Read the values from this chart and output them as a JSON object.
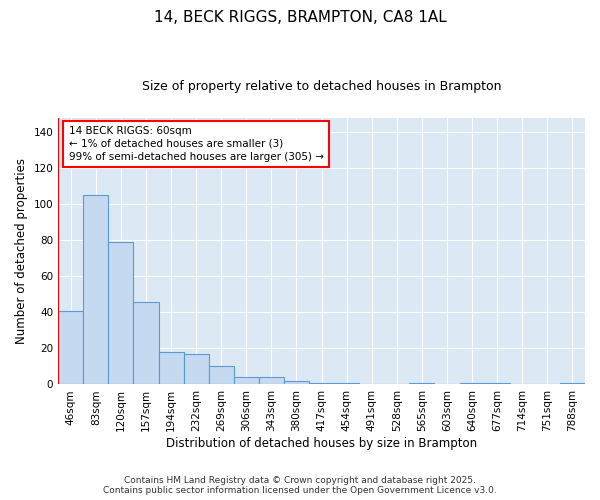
{
  "title": "14, BECK RIGGS, BRAMPTON, CA8 1AL",
  "subtitle": "Size of property relative to detached houses in Brampton",
  "xlabel": "Distribution of detached houses by size in Brampton",
  "ylabel": "Number of detached properties",
  "categories": [
    "46sqm",
    "83sqm",
    "120sqm",
    "157sqm",
    "194sqm",
    "232sqm",
    "269sqm",
    "306sqm",
    "343sqm",
    "380sqm",
    "417sqm",
    "454sqm",
    "491sqm",
    "528sqm",
    "565sqm",
    "603sqm",
    "640sqm",
    "677sqm",
    "714sqm",
    "751sqm",
    "788sqm"
  ],
  "values": [
    41,
    105,
    79,
    46,
    18,
    17,
    10,
    4,
    4,
    2,
    1,
    1,
    0,
    0,
    1,
    0,
    1,
    1,
    0,
    0,
    1
  ],
  "bar_color": "#c5d9f0",
  "bar_edge_color": "#5b9bd5",
  "annotation_text_line1": "14 BECK RIGGS: 60sqm",
  "annotation_text_line2": "← 1% of detached houses are smaller (3)",
  "annotation_text_line3": "99% of semi-detached houses are larger (305) →",
  "ylim": [
    0,
    148
  ],
  "yticks": [
    0,
    20,
    40,
    60,
    80,
    100,
    120,
    140
  ],
  "background_color": "#dce9f5",
  "plot_bg_color": "#dce9f5",
  "footer": "Contains HM Land Registry data © Crown copyright and database right 2025.\nContains public sector information licensed under the Open Government Licence v3.0.",
  "title_fontsize": 11,
  "subtitle_fontsize": 9,
  "axis_label_fontsize": 8.5,
  "tick_fontsize": 7.5,
  "annotation_fontsize": 7.5,
  "footer_fontsize": 6.5
}
